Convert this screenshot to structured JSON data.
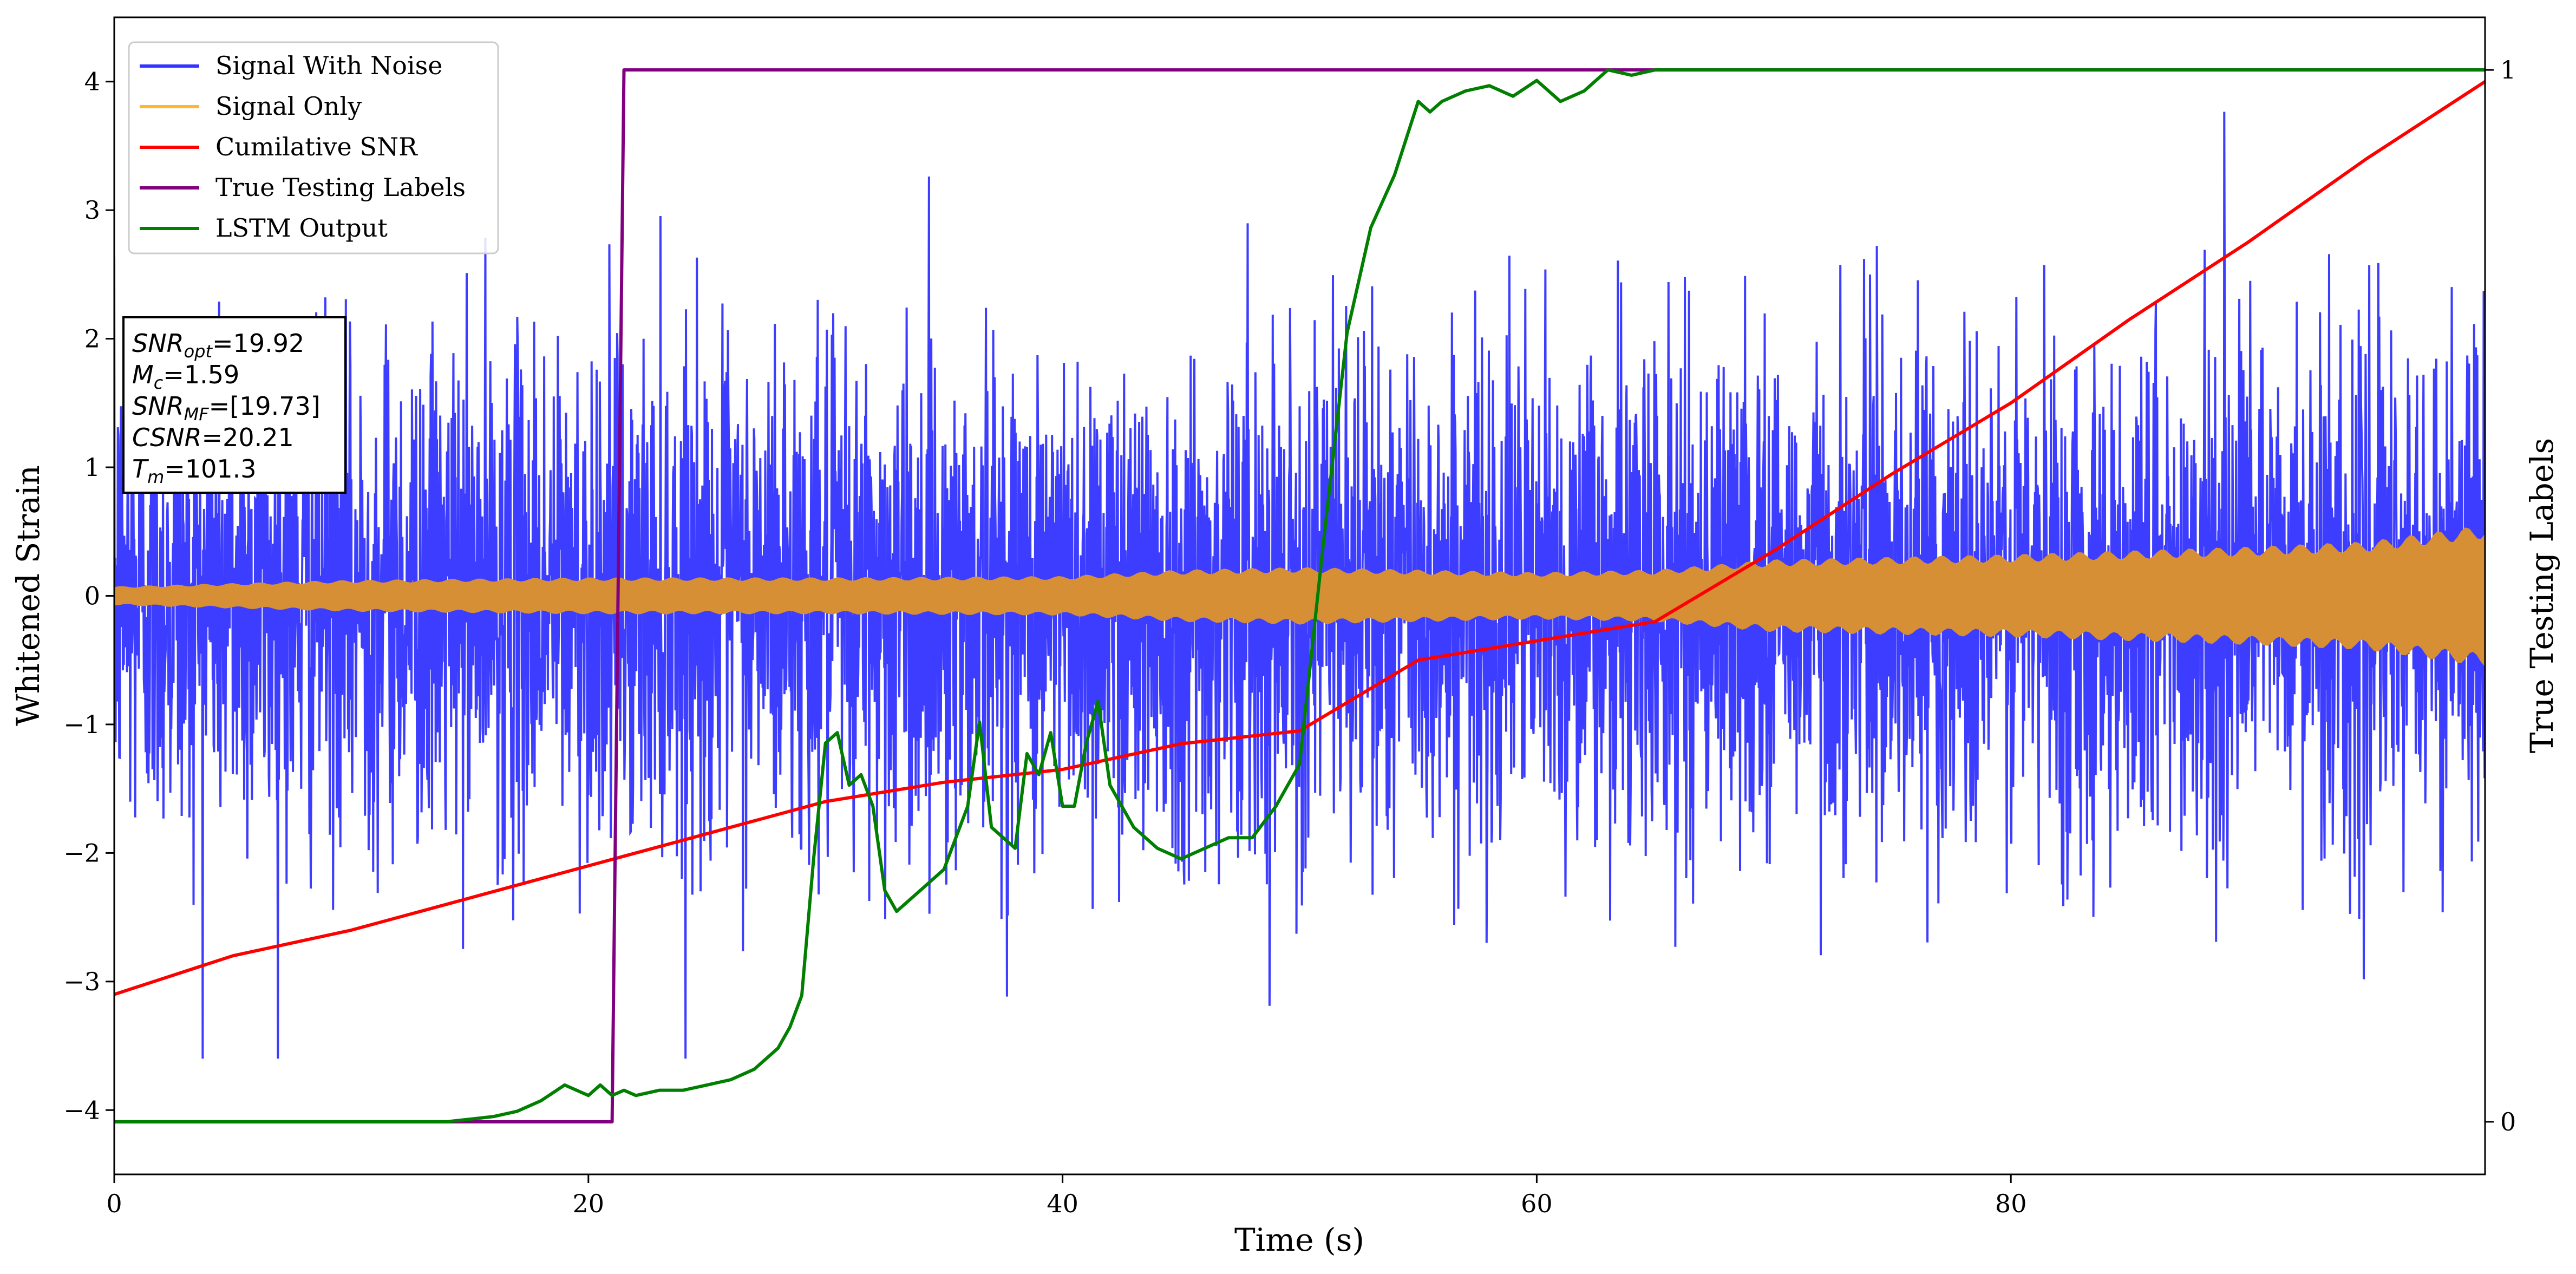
{
  "chart_data": {
    "type": "line",
    "xlabel": "Time (s)",
    "ylabel": "Whitened Strain",
    "y2label": "True Testing Labels",
    "xlim": [
      0,
      100
    ],
    "ylim": [
      -4.5,
      4.5
    ],
    "y2lim": [
      -0.05,
      1.05
    ],
    "x_ticks": [
      0,
      20,
      40,
      60,
      80
    ],
    "y_ticks": [
      -4,
      -3,
      -2,
      -1,
      0,
      1,
      2,
      3,
      4
    ],
    "y2_ticks": [
      0,
      1
    ],
    "legend_position": "top-left",
    "series": [
      {
        "name": "Signal With Noise",
        "axis": "left",
        "color": "#3333ff",
        "noise_band": [
          -1.3,
          1.3
        ],
        "observed_range": [
          -3.6,
          4.1
        ]
      },
      {
        "name": "Signal Only",
        "axis": "left",
        "color": "#ffb732",
        "fill_color": "#d68f35",
        "envelope": {
          "x": [
            0,
            10,
            20,
            30,
            40,
            45,
            50,
            55,
            60,
            65,
            70,
            75,
            80,
            85,
            90,
            95,
            100
          ],
          "amplitude": [
            0.07,
            0.12,
            0.14,
            0.14,
            0.15,
            0.2,
            0.22,
            0.2,
            0.18,
            0.2,
            0.28,
            0.3,
            0.32,
            0.35,
            0.38,
            0.42,
            0.55
          ]
        }
      },
      {
        "name": "Cumilative SNR",
        "axis": "left",
        "color": "#ff0000",
        "x": [
          0,
          5,
          10,
          15,
          20,
          25,
          30,
          35,
          40,
          45,
          50,
          55,
          60,
          65,
          70,
          75,
          80,
          85,
          90,
          95,
          100
        ],
        "y": [
          -3.1,
          -2.8,
          -2.6,
          -2.35,
          -2.1,
          -1.85,
          -1.6,
          -1.45,
          -1.35,
          -1.15,
          -1.05,
          -0.5,
          -0.35,
          -0.2,
          0.35,
          0.95,
          1.5,
          2.15,
          2.75,
          3.4,
          4.0
        ]
      },
      {
        "name": "True Testing Labels",
        "axis": "right",
        "color": "#800080",
        "x": [
          0,
          21,
          21.5,
          100
        ],
        "y": [
          0,
          0,
          1,
          1
        ]
      },
      {
        "name": "LSTM Output",
        "axis": "right",
        "color": "#007f00",
        "x": [
          0,
          14,
          16,
          17,
          18,
          19,
          19.5,
          20,
          20.5,
          21,
          21.5,
          22,
          23,
          24,
          25,
          26,
          27,
          28,
          28.5,
          29,
          29.5,
          30,
          30.5,
          31,
          31.5,
          32,
          32.5,
          33,
          34,
          35,
          36,
          36.5,
          37,
          37.5,
          38,
          38.5,
          39,
          39.5,
          40,
          40.5,
          41,
          41.5,
          42,
          43,
          44,
          45,
          46,
          47,
          48,
          49,
          50,
          51,
          52,
          53,
          54,
          55,
          55.5,
          56,
          57,
          58,
          59,
          60,
          61,
          62,
          63,
          64,
          65,
          67,
          70,
          100
        ],
        "y": [
          0,
          0,
          0.005,
          0.01,
          0.02,
          0.035,
          0.03,
          0.025,
          0.035,
          0.025,
          0.03,
          0.025,
          0.03,
          0.03,
          0.035,
          0.04,
          0.05,
          0.07,
          0.09,
          0.12,
          0.25,
          0.36,
          0.37,
          0.32,
          0.33,
          0.3,
          0.22,
          0.2,
          0.22,
          0.24,
          0.3,
          0.38,
          0.28,
          0.27,
          0.26,
          0.35,
          0.33,
          0.37,
          0.3,
          0.3,
          0.36,
          0.4,
          0.32,
          0.28,
          0.26,
          0.25,
          0.26,
          0.27,
          0.27,
          0.3,
          0.34,
          0.55,
          0.75,
          0.85,
          0.9,
          0.97,
          0.96,
          0.97,
          0.98,
          0.985,
          0.975,
          0.99,
          0.97,
          0.98,
          1.0,
          0.995,
          1.0,
          1.0,
          1.0,
          1.0
        ]
      }
    ],
    "annotation_box": {
      "position": "upper-left",
      "lines": [
        {
          "base": "SNR",
          "sub": "opt",
          "value": "=19.92"
        },
        {
          "base": "M",
          "sub": "c",
          "value": "=1.59"
        },
        {
          "base": "SNR",
          "sub": "MF",
          "value": "=[19.73]"
        },
        {
          "base": "CSNR",
          "sub": "",
          "value": "=20.21"
        },
        {
          "base": "T",
          "sub": "m",
          "value": "=101.3"
        }
      ]
    }
  }
}
